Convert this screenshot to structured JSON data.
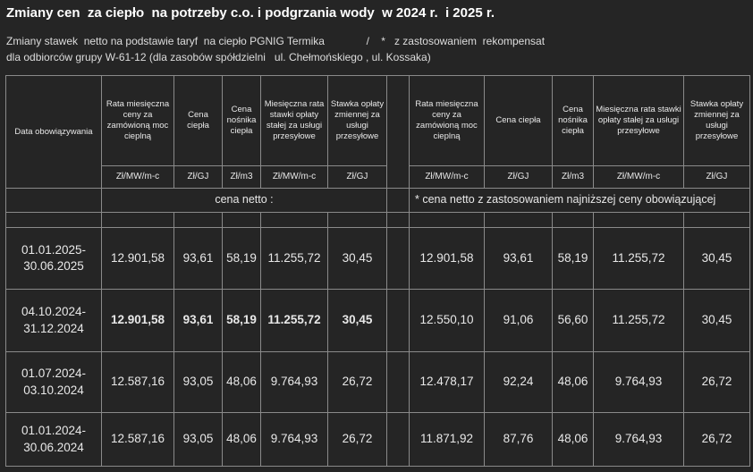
{
  "title": "Zmiany cen  za ciepło  na potrzeby c.o. i podgrzania wody  w 2024 r.  i 2025 r.",
  "subtitle_line1": "Zmiany stawek  netto na podstawie taryf  na ciepło PGNIG Termika              /    *   z zastosowaniem  rekompensat",
  "subtitle_line2": "dla odbiorców grupy W-61-12 (dla zasobów spółdzielni   ul. Chełmońskiego , ul. Kossaka)",
  "table": {
    "date_header": "Data obowiązywania",
    "headers_left": [
      "Rata miesięczna ceny za zamówioną moc cieplną",
      "Cena ciepła",
      "Cena nośnika ciepła",
      "Miesięczna rata stawki opłaty stałej za usługi przesyłowe",
      "Stawka opłaty zmiennej za usługi przesyłowe"
    ],
    "headers_right": [
      "Rata miesięczna ceny za zamówioną moc cieplną",
      "Cena ciepła",
      "Cena nośnika ciepła",
      "Miesięczna rata stawki opłaty stałej za usługi przesyłowe",
      "Stawka opłaty zmiennej za usługi przesyłowe"
    ],
    "units_left": [
      "Zł/MW/m-c",
      "Zł/GJ",
      "Zł/m3",
      "Zł/MW/m-c",
      "Zł/GJ"
    ],
    "units_right": [
      "Zł/MW/m-c",
      "Zł/GJ",
      "Zł/m3",
      "Zł/MW/m-c",
      "Zł/GJ"
    ],
    "netto_label": "cena netto :",
    "netto_label_right": "* cena netto z  zastosowaniem najniższej ceny obowiązującej",
    "rows": [
      {
        "date1": "01.01.2025-",
        "date2": "30.06.2025",
        "left": [
          "12.901,58",
          "93,61",
          "58,19",
          "11.255,72",
          "30,45"
        ],
        "right": [
          "12.901,58",
          "93,61",
          "58,19",
          "11.255,72",
          "30,45"
        ]
      },
      {
        "date1": "04.10.2024-",
        "date2": "31.12.2024",
        "left": [
          "12.901,58",
          "93,61",
          "58,19",
          "11.255,72",
          "30,45"
        ],
        "right": [
          "12.550,10",
          "91,06",
          "56,60",
          "11.255,72",
          "30,45"
        ]
      },
      {
        "date1": "01.07.2024-",
        "date2": "03.10.2024",
        "left": [
          "12.587,16",
          "93,05",
          "48,06",
          "9.764,93",
          "26,72"
        ],
        "right": [
          "12.478,17",
          "92,24",
          "48,06",
          "9.764,93",
          "26,72"
        ]
      },
      {
        "date1": "01.01.2024-",
        "date2": "30.06.2024",
        "left": [
          "12.587,16",
          "93,05",
          "48,06",
          "9.764,93",
          "26,72"
        ],
        "right": [
          "11.871,92",
          "87,76",
          "48,06",
          "9.764,93",
          "26,72"
        ]
      }
    ]
  }
}
